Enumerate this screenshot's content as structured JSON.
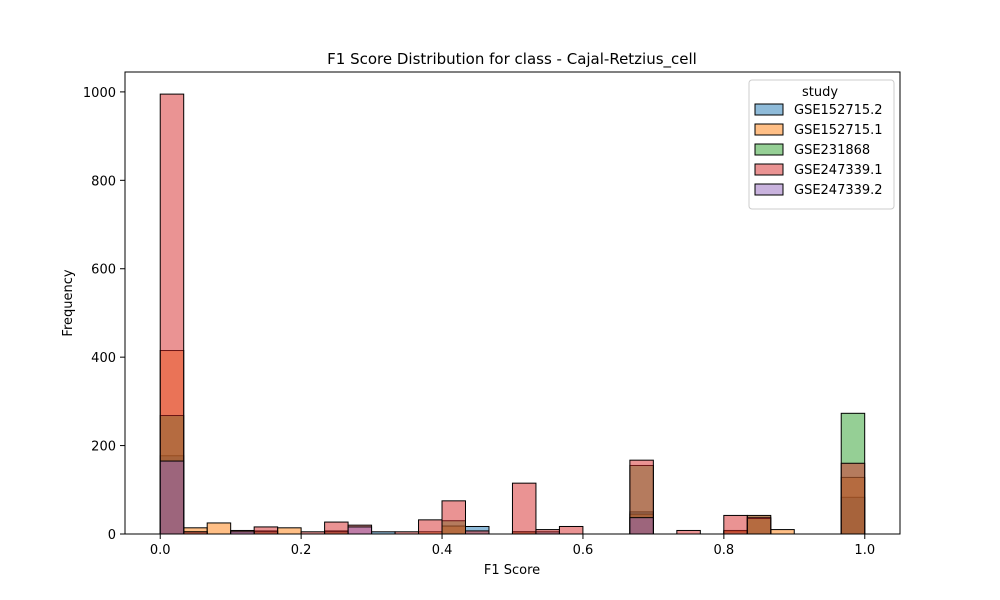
{
  "chart_data": {
    "type": "bar",
    "title": "F1 Score Distribution for class - Cajal-Retzius_cell",
    "xlabel": "F1 Score",
    "ylabel": "Frequency",
    "xlim": [
      -0.05,
      1.05
    ],
    "ylim": [
      0,
      1045
    ],
    "x_ticks": [
      "0.0",
      "0.2",
      "0.4",
      "0.6",
      "0.8",
      "1.0"
    ],
    "y_ticks": [
      "0",
      "200",
      "400",
      "600",
      "800",
      "1000"
    ],
    "legend_title": "study",
    "legend_position": "upper right",
    "bin_edges_start": 0.0,
    "bin_width": 0.03333,
    "series": [
      {
        "name": "GSE152715.2",
        "color": "#1f77b4",
        "bins": [
          [
            0,
            177
          ],
          [
            1,
            5
          ],
          [
            4,
            7
          ],
          [
            7,
            7
          ],
          [
            9,
            5
          ],
          [
            13,
            17
          ],
          [
            15,
            5
          ],
          [
            16,
            5
          ],
          [
            20,
            50
          ],
          [
            24,
            5
          ],
          [
            29,
            83
          ]
        ]
      },
      {
        "name": "GSE152715.1",
        "color": "#ff7f0e",
        "bins": [
          [
            0,
            415
          ],
          [
            1,
            14
          ],
          [
            2,
            25
          ],
          [
            4,
            5
          ],
          [
            5,
            14
          ],
          [
            7,
            5
          ],
          [
            11,
            5
          ],
          [
            12,
            18
          ],
          [
            15,
            5
          ],
          [
            20,
            45
          ],
          [
            24,
            8
          ],
          [
            25,
            42
          ],
          [
            26,
            10
          ],
          [
            29,
            128
          ]
        ]
      },
      {
        "name": "GSE231868",
        "color": "#2ca02c",
        "bins": [
          [
            0,
            268
          ],
          [
            12,
            30
          ],
          [
            20,
            155
          ],
          [
            25,
            35
          ],
          [
            29,
            273
          ]
        ]
      },
      {
        "name": "GSE247339.1",
        "color": "#d62728",
        "bins": [
          [
            0,
            995
          ],
          [
            1,
            5
          ],
          [
            3,
            8
          ],
          [
            4,
            16
          ],
          [
            6,
            5
          ],
          [
            7,
            27
          ],
          [
            8,
            20
          ],
          [
            10,
            5
          ],
          [
            11,
            32
          ],
          [
            12,
            75
          ],
          [
            13,
            7
          ],
          [
            15,
            115
          ],
          [
            16,
            10
          ],
          [
            17,
            17
          ],
          [
            20,
            167
          ],
          [
            22,
            8
          ],
          [
            24,
            42
          ],
          [
            25,
            38
          ],
          [
            29,
            160
          ]
        ]
      },
      {
        "name": "GSE247339.2",
        "color": "#9467bd",
        "bins": [
          [
            0,
            165
          ],
          [
            3,
            5
          ],
          [
            8,
            16
          ],
          [
            20,
            37
          ]
        ]
      }
    ]
  }
}
